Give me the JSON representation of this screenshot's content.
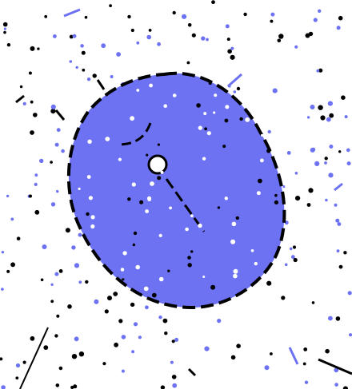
{
  "scene": {
    "colors": {
      "background": "#ffffff",
      "blob_fill": "#6d72f2",
      "outline": "#000000",
      "dot_dark": "#000000",
      "dot_blue": "#6d72f2",
      "dot_white": "#ffffff"
    },
    "icons": [
      "ring-icon"
    ]
  }
}
